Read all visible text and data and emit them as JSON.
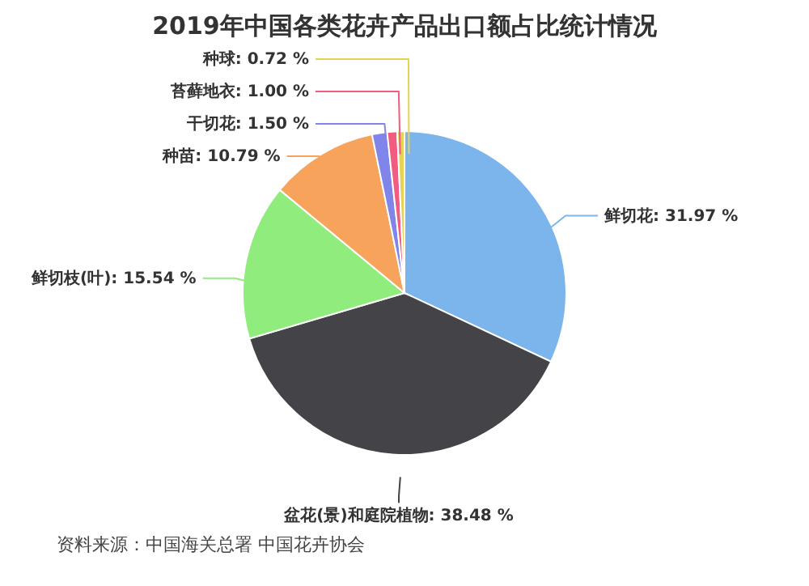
{
  "chart_data": {
    "type": "pie",
    "title": "2019年中国各类花卉产品出口额占比统计情况",
    "categories": [
      "鲜切花",
      "盆花(景)和庭院植物",
      "鲜切枝(叶)",
      "种苗",
      "干切花",
      "苔藓地衣",
      "种球"
    ],
    "values": [
      31.97,
      38.48,
      15.54,
      10.79,
      1.5,
      1.0,
      0.72
    ],
    "colors": [
      "#7cb5ec",
      "#434348",
      "#90ed7d",
      "#f7a35c",
      "#8085e9",
      "#f15c80",
      "#e4d354"
    ],
    "value_labels": [
      "31.97 %",
      "38.48 %",
      "15.54 %",
      "10.79 %",
      "1.50 %",
      "1.00 %",
      "0.72 %"
    ],
    "annotations": [
      "资料来源：中国海关总署 中国花卉协会"
    ]
  }
}
